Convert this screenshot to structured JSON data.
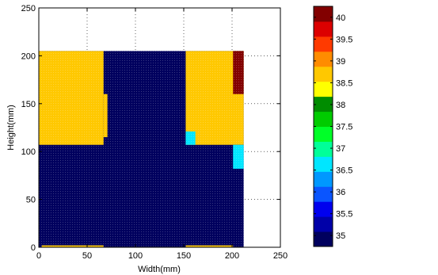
{
  "chart_data": {
    "type": "heatmap",
    "title": "",
    "xlabel": "Width(mm)",
    "ylabel": "Height(mm)",
    "xlim": [
      0,
      250
    ],
    "ylim": [
      0,
      250
    ],
    "xticks": [
      "0",
      "50",
      "100",
      "150",
      "200",
      "250"
    ],
    "yticks": [
      "0",
      "50",
      "100",
      "150",
      "200",
      "250"
    ],
    "grid": true,
    "colorbar": {
      "min": 34.75,
      "max": 40.25,
      "labels": [
        "35",
        "35.5",
        "36",
        "36.5",
        "37",
        "37.5",
        "38",
        "38.5",
        "39",
        "39.5",
        "40"
      ],
      "colors": [
        "#00005e",
        "#0000a8",
        "#0000ee",
        "#0a55ff",
        "#0098ff",
        "#00e6ff",
        "#00ff98",
        "#00ff28",
        "#00cc00",
        "#008c00",
        "#ffff00",
        "#ffc800",
        "#ff8c00",
        "#ff3a00",
        "#dc0000",
        "#820000"
      ]
    },
    "regions": [
      {
        "x": [
          0,
          212
        ],
        "y": [
          0,
          205
        ],
        "value": 34.9
      },
      {
        "x": [
          0,
          67
        ],
        "y": [
          107,
          205
        ],
        "value": 38.6
      },
      {
        "x": [
          67,
          71
        ],
        "y": [
          115,
          160
        ],
        "value": 38.6
      },
      {
        "x": [
          152,
          212
        ],
        "y": [
          107,
          205
        ],
        "value": 38.6
      },
      {
        "x": [
          152,
          162
        ],
        "y": [
          107,
          121
        ],
        "value": 36.6
      },
      {
        "x": [
          201,
          212
        ],
        "y": [
          82,
          107
        ],
        "value": 36.6
      },
      {
        "x": [
          201,
          212
        ],
        "y": [
          160,
          205
        ],
        "value": 40.1
      },
      {
        "x": [
          3,
          67
        ],
        "y": [
          0,
          2
        ],
        "value": 38.6
      },
      {
        "x": [
          152,
          201
        ],
        "y": [
          0,
          2
        ],
        "value": 38.6
      }
    ]
  }
}
